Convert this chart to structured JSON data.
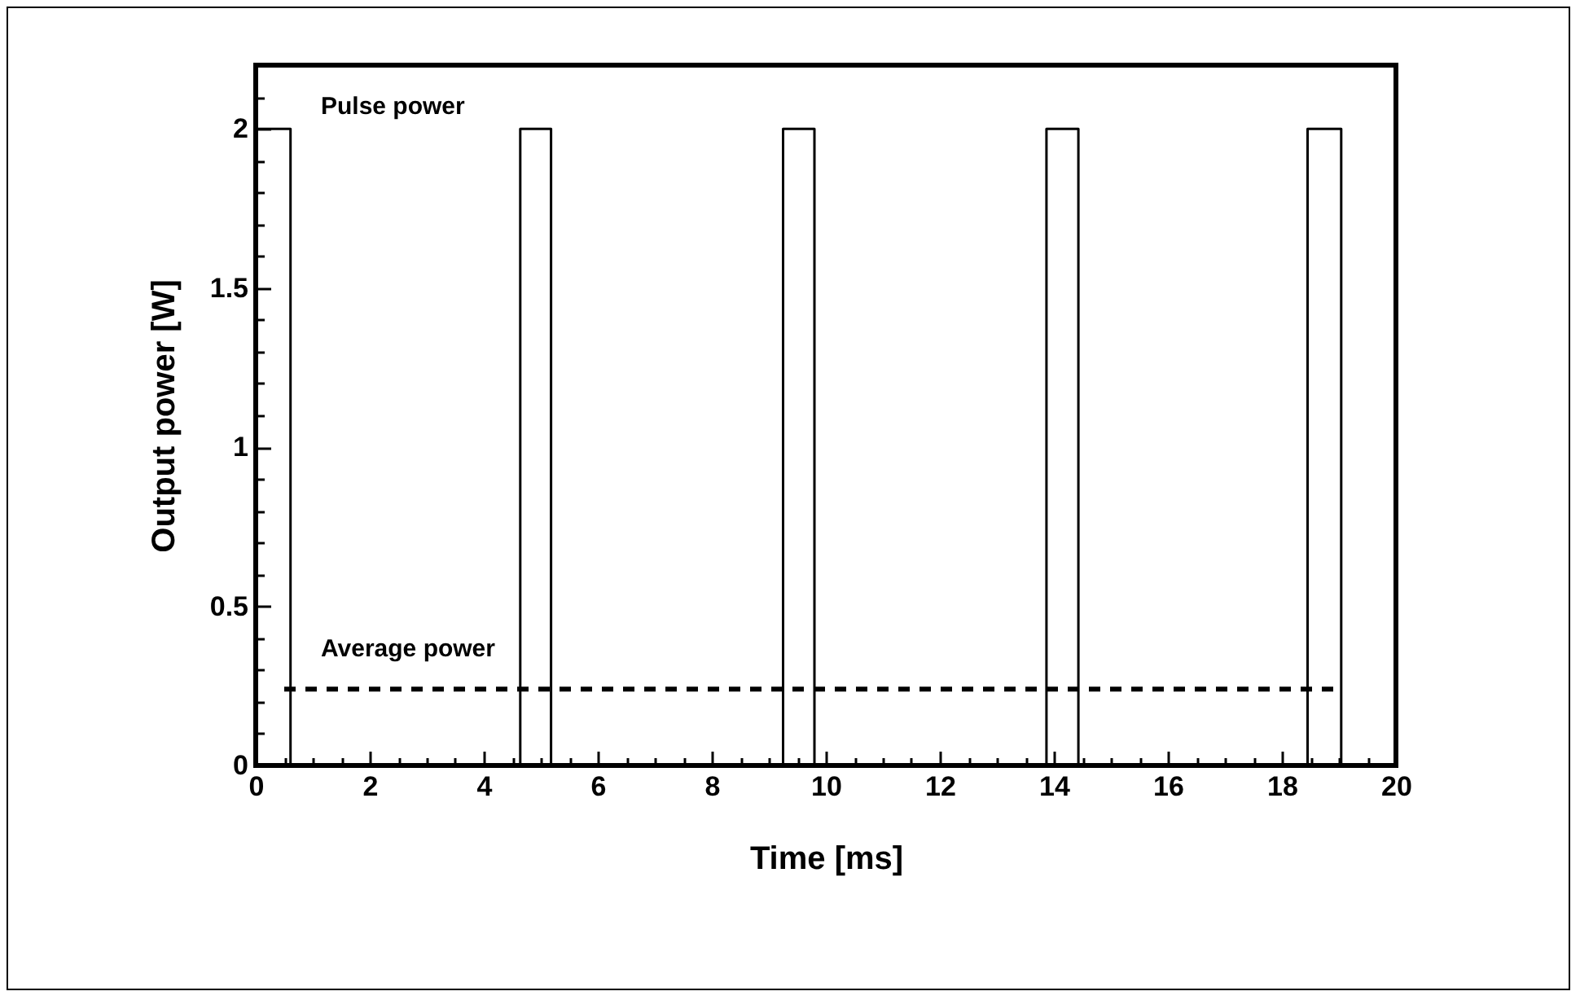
{
  "chart_data": {
    "type": "line",
    "xlabel": "Time [ms]",
    "ylabel": "Output power [W]",
    "annotations": [
      "Pulse power",
      "Average power"
    ],
    "series": [
      {
        "color": "#000000",
        "line_style": "solid",
        "x": [
          0,
          0.61,
          0.61,
          4.64,
          4.64,
          5.18,
          5.18,
          9.25,
          9.25,
          9.8,
          9.8,
          13.87,
          13.87,
          14.43,
          14.43,
          18.45,
          18.45,
          19.04,
          19.04
        ],
        "values": [
          2,
          2,
          0,
          0,
          2,
          2,
          0,
          0,
          2,
          2,
          0,
          0,
          2,
          2,
          0,
          0,
          2,
          2,
          0
        ]
      },
      {
        "color": "#000000",
        "line_style": "dashed",
        "x": [
          0.5,
          19.05
        ],
        "values": [
          0.24,
          0.24
        ]
      }
    ],
    "marker": "none",
    "grid": false,
    "legend": false,
    "xlim": [
      0,
      20
    ],
    "xticks": [
      0,
      {
        "value": 0.5,
        "label": null
      },
      {
        "value": 1,
        "label": null
      },
      {
        "value": 1.5,
        "label": null
      },
      2,
      {
        "value": 2.5,
        "label": null
      },
      {
        "value": 3,
        "label": null
      },
      {
        "value": 3.5,
        "label": null
      },
      4,
      {
        "value": 4.5,
        "label": null
      },
      {
        "value": 5,
        "label": null
      },
      {
        "value": 5.5,
        "label": null
      },
      6,
      {
        "value": 6.5,
        "label": null
      },
      {
        "value": 7,
        "label": null
      },
      {
        "value": 7.5,
        "label": null
      },
      8,
      {
        "value": 8.5,
        "label": null
      },
      {
        "value": 9,
        "label": null
      },
      {
        "value": 9.5,
        "label": null
      },
      10,
      {
        "value": 10.5,
        "label": null
      },
      {
        "value": 11,
        "label": null
      },
      {
        "value": 11.5,
        "label": null
      },
      12,
      {
        "value": 12.5,
        "label": null
      },
      {
        "value": 13,
        "label": null
      },
      {
        "value": 13.5,
        "label": null
      },
      14,
      {
        "value": 14.5,
        "label": null
      },
      {
        "value": 15,
        "label": null
      },
      {
        "value": 15.5,
        "label": null
      },
      16,
      {
        "value": 16.5,
        "label": null
      },
      {
        "value": 17,
        "label": null
      },
      {
        "value": 17.5,
        "label": null
      },
      18,
      {
        "value": 18.5,
        "label": null
      },
      {
        "value": 19,
        "label": null
      },
      {
        "value": 19.5,
        "label": null
      },
      20
    ],
    "ylim": [
      0,
      2.2
    ],
    "yticks": [
      0,
      {
        "value": 0.1,
        "label": null
      },
      {
        "value": 0.2,
        "label": null
      },
      {
        "value": 0.3,
        "label": null
      },
      {
        "value": 0.4,
        "label": null
      },
      0.5,
      {
        "value": 0.6,
        "label": null
      },
      {
        "value": 0.7,
        "label": null
      },
      {
        "value": 0.8,
        "label": null
      },
      {
        "value": 0.9,
        "label": null
      },
      1,
      {
        "value": 1.1,
        "label": null
      },
      {
        "value": 1.2,
        "label": null
      },
      {
        "value": 1.3,
        "label": null
      },
      {
        "value": 1.4,
        "label": null
      },
      1.5,
      {
        "value": 1.6,
        "label": null
      },
      {
        "value": 1.7,
        "label": null
      },
      {
        "value": 1.8,
        "label": null
      },
      {
        "value": 1.9,
        "label": null
      },
      2,
      {
        "value": 2.1,
        "label": null
      }
    ]
  }
}
